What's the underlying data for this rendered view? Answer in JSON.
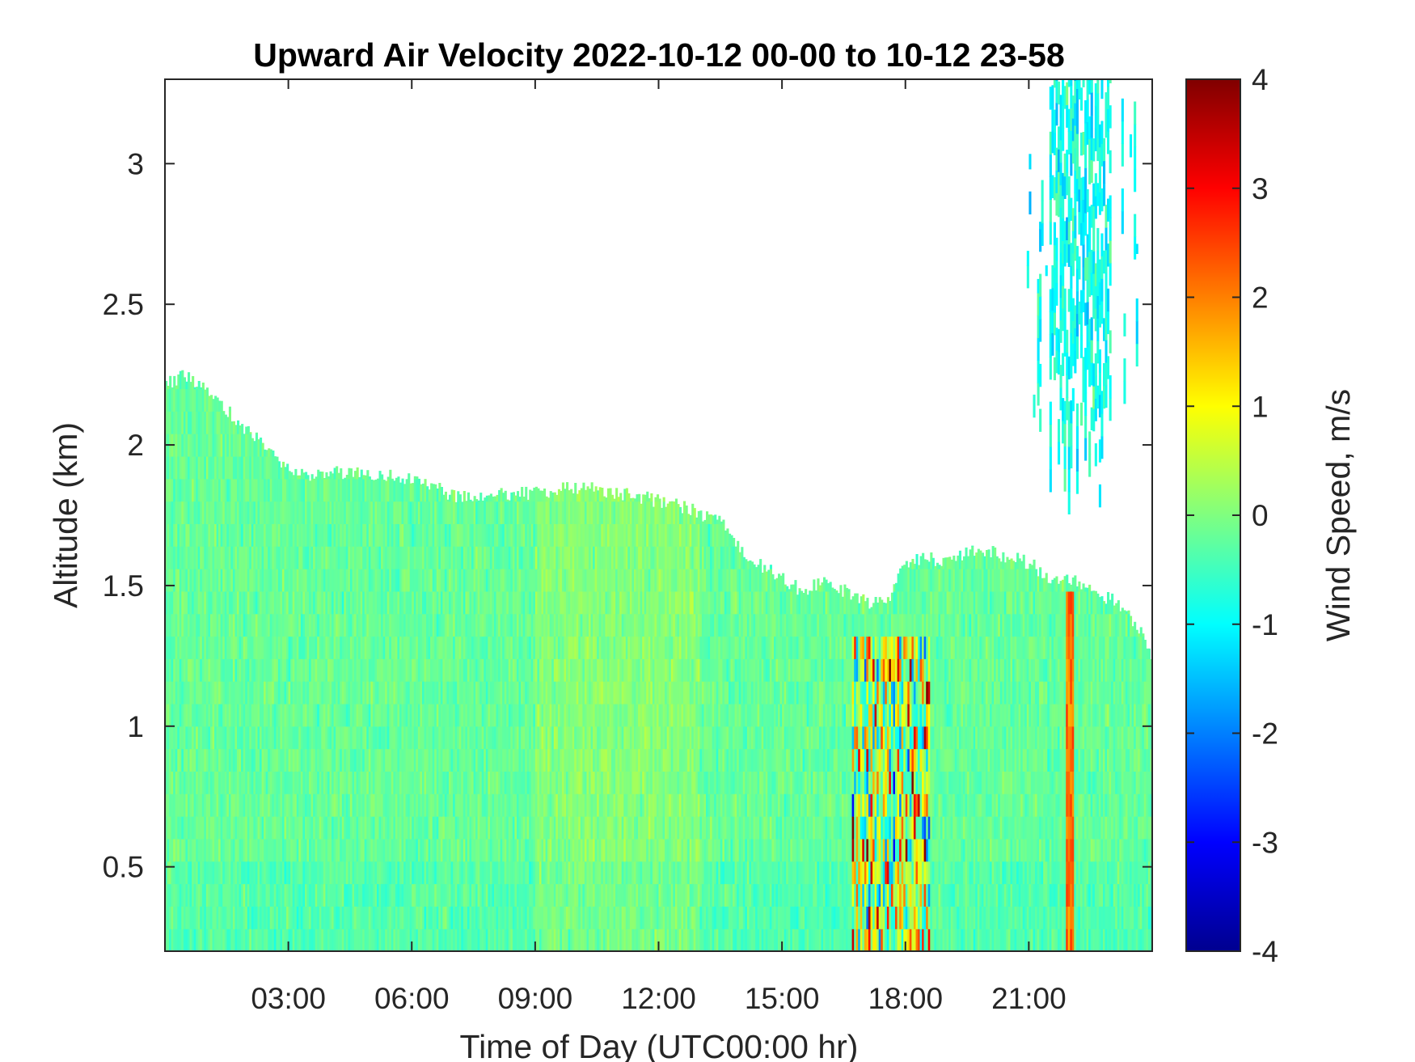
{
  "chart_data": {
    "type": "heatmap",
    "title": "Upward Air Velocity 2022-10-12 00-00 to 10-12 23-58",
    "xlabel": "Time of Day (UTC00:00 hr)",
    "ylabel": "Altitude (km)",
    "colorbar_label": "Wind Speed, m/s",
    "colormap": "jet",
    "x_unit": "hour",
    "xlim": [
      0,
      24
    ],
    "ylim": [
      0.2,
      3.3
    ],
    "clim": [
      -4,
      4
    ],
    "x_ticks": [
      {
        "value": 3,
        "label": "03:00"
      },
      {
        "value": 6,
        "label": "06:00"
      },
      {
        "value": 9,
        "label": "09:00"
      },
      {
        "value": 12,
        "label": "12:00"
      },
      {
        "value": 15,
        "label": "15:00"
      },
      {
        "value": 18,
        "label": "18:00"
      },
      {
        "value": 21,
        "label": "21:00"
      }
    ],
    "y_ticks": [
      {
        "value": 0.5,
        "label": "0.5"
      },
      {
        "value": 1,
        "label": "1"
      },
      {
        "value": 1.5,
        "label": "1.5"
      },
      {
        "value": 2,
        "label": "2"
      },
      {
        "value": 2.5,
        "label": "2.5"
      },
      {
        "value": 3,
        "label": "3"
      }
    ],
    "colorbar_ticks": [
      {
        "value": 4,
        "label": "4"
      },
      {
        "value": 3,
        "label": "3"
      },
      {
        "value": 2,
        "label": "2"
      },
      {
        "value": 1,
        "label": "1"
      },
      {
        "value": 0,
        "label": "0"
      },
      {
        "value": -1,
        "label": "-1"
      },
      {
        "value": -2,
        "label": "-2"
      },
      {
        "value": -3,
        "label": "-3"
      },
      {
        "value": -4,
        "label": "-4"
      }
    ],
    "grid": false,
    "data_top_altitude_km": [
      [
        0.0,
        2.22
      ],
      [
        0.5,
        2.25
      ],
      [
        1.0,
        2.2
      ],
      [
        1.5,
        2.12
      ],
      [
        2.0,
        2.05
      ],
      [
        2.5,
        1.98
      ],
      [
        3.0,
        1.92
      ],
      [
        3.5,
        1.88
      ],
      [
        4.0,
        1.9
      ],
      [
        5.0,
        1.9
      ],
      [
        6.0,
        1.88
      ],
      [
        7.0,
        1.82
      ],
      [
        8.0,
        1.82
      ],
      [
        9.0,
        1.83
      ],
      [
        10.0,
        1.85
      ],
      [
        11.0,
        1.83
      ],
      [
        12.0,
        1.8
      ],
      [
        12.8,
        1.77
      ],
      [
        13.5,
        1.72
      ],
      [
        14.0,
        1.62
      ],
      [
        14.5,
        1.57
      ],
      [
        15.0,
        1.52
      ],
      [
        15.5,
        1.48
      ],
      [
        16.0,
        1.52
      ],
      [
        16.5,
        1.48
      ],
      [
        17.0,
        1.44
      ],
      [
        17.5,
        1.44
      ],
      [
        18.0,
        1.58
      ],
      [
        18.5,
        1.6
      ],
      [
        19.0,
        1.58
      ],
      [
        19.5,
        1.62
      ],
      [
        20.0,
        1.62
      ],
      [
        20.5,
        1.6
      ],
      [
        21.0,
        1.58
      ],
      [
        21.5,
        1.52
      ],
      [
        22.0,
        1.52
      ],
      [
        22.5,
        1.48
      ],
      [
        23.0,
        1.45
      ],
      [
        23.5,
        1.38
      ],
      [
        24.0,
        1.25
      ]
    ],
    "regions": [
      {
        "x": [
          0,
          15
        ],
        "y": [
          0.2,
          2.2
        ],
        "velocity": -0.4
      },
      {
        "x": [
          16.8,
          18.5
        ],
        "y": [
          0.2,
          1.3
        ],
        "velocity_range": [
          -3,
          3.5
        ]
      },
      {
        "x": [
          21.8,
          22.1
        ],
        "y": [
          0.3,
          1.5
        ],
        "velocity": 2.5
      },
      {
        "x": [
          20.8,
          24
        ],
        "y": [
          1.5,
          3.3
        ],
        "velocity": -1
      }
    ]
  }
}
